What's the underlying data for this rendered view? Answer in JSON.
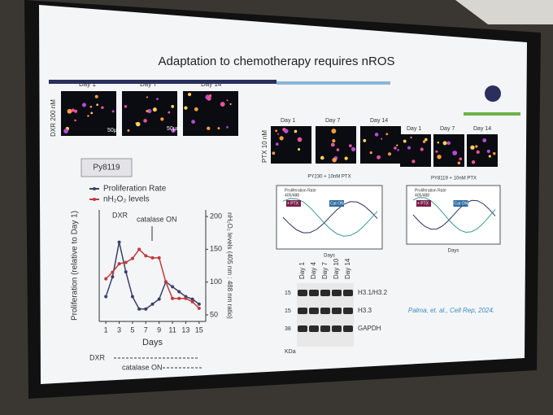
{
  "slide": {
    "title": "Adaptation to chemotherapy requires nROS",
    "left_panel": {
      "treatment": "DXR 200 nM",
      "days": [
        "Day 1",
        "Day 7",
        "Day 14"
      ],
      "scale_bars": [
        "50µm",
        "50µm"
      ],
      "cell_line": "Py8119"
    },
    "annotations": {
      "drug": "DXR",
      "catalase": "catalase ON",
      "drug_range": "DXR",
      "catalase_range": "catalase ON"
    },
    "right_panel": {
      "treatment": "PTX 10 nM",
      "days_a": [
        "Day 1",
        "Day 7",
        "Day 14"
      ],
      "days_b": [
        "Day 1",
        "Day 7",
        "Day 14"
      ],
      "title_a": "PY230 + 10nM PTX",
      "title_b": "PY8119 + 10nM PTX",
      "legend": [
        "Proliferation Rate",
        "405/488"
      ],
      "markers": [
        "+ PTX",
        "Cat ON"
      ],
      "x_label": "Days"
    },
    "blot": {
      "lanes": [
        "Day 1",
        "Day 4",
        "Day 7",
        "Day 10",
        "Day 14"
      ],
      "bands": [
        "H3.1/H3.2",
        "H3.3",
        "GAPDH"
      ],
      "sizes": [
        "15",
        "15",
        "38"
      ],
      "unit": "KDa"
    },
    "citation": "Palma, et. al., Cell Rep, 2024."
  },
  "chart_data": {
    "type": "line",
    "x_label": "Days",
    "y_label": "Proliferation (relative to Day 1)",
    "y2_label": "nH₂O₂ levels (405 nm : 488 nm ratio)",
    "x": [
      1,
      2,
      3,
      4,
      5,
      6,
      7,
      8,
      9,
      10,
      11,
      12,
      13,
      14,
      15
    ],
    "xlim": [
      0,
      16
    ],
    "xticks": [
      1,
      3,
      5,
      7,
      9,
      11,
      13,
      15
    ],
    "ylim": [
      0,
      4.5
    ],
    "y2lim": [
      40,
      210
    ],
    "y2ticks": [
      50,
      100,
      150,
      200
    ],
    "series": [
      {
        "name": "Proliferation Rate",
        "color": "#3a3f6b",
        "values": [
          1,
          1.8,
          3.2,
          2,
          1,
          0.5,
          0.5,
          0.7,
          0.9,
          1.6,
          1.4,
          1.2,
          1,
          0.9,
          0.7
        ]
      },
      {
        "name": "nH₂O₂ levels",
        "color": "#c0393b",
        "axis": "y2",
        "values": [
          105,
          115,
          128,
          130,
          136,
          150,
          140,
          137,
          137,
          100,
          75,
          75,
          75,
          70,
          60
        ]
      }
    ]
  }
}
